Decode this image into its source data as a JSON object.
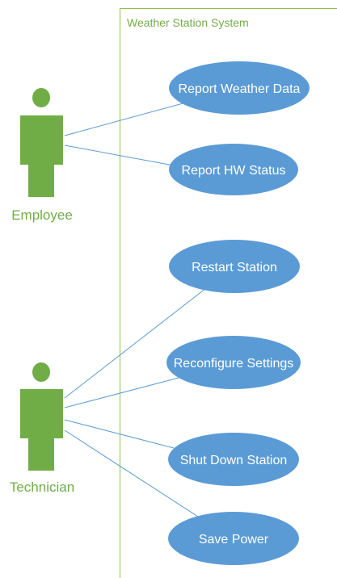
{
  "system": {
    "title": "Weather Station System",
    "border_color": "#8dc24a",
    "title_color": "#70ad47"
  },
  "colors": {
    "actor": "#70ad47",
    "actor_label": "#70ad47",
    "use_case_fill": "#5b9bd5",
    "use_case_text": "#ffffff",
    "association_line": "#5b9bd5"
  },
  "actors": [
    {
      "id": "employee",
      "label": "Employee",
      "icon": "person-icon"
    },
    {
      "id": "technician",
      "label": "Technician",
      "icon": "person-icon"
    }
  ],
  "use_cases": [
    {
      "id": "report-weather-data",
      "label": "Report Weather Data"
    },
    {
      "id": "report-hw-status",
      "label": "Report HW Status"
    },
    {
      "id": "restart-station",
      "label": "Restart Station"
    },
    {
      "id": "reconfigure-settings",
      "label": "Reconfigure Settings"
    },
    {
      "id": "shut-down-station",
      "label": "Shut Down Station"
    },
    {
      "id": "save-power",
      "label": "Save Power"
    }
  ],
  "associations": [
    {
      "actor": "employee",
      "use_case": "report-weather-data"
    },
    {
      "actor": "employee",
      "use_case": "report-hw-status"
    },
    {
      "actor": "technician",
      "use_case": "restart-station"
    },
    {
      "actor": "technician",
      "use_case": "reconfigure-settings"
    },
    {
      "actor": "technician",
      "use_case": "shut-down-station"
    },
    {
      "actor": "technician",
      "use_case": "save-power"
    }
  ]
}
